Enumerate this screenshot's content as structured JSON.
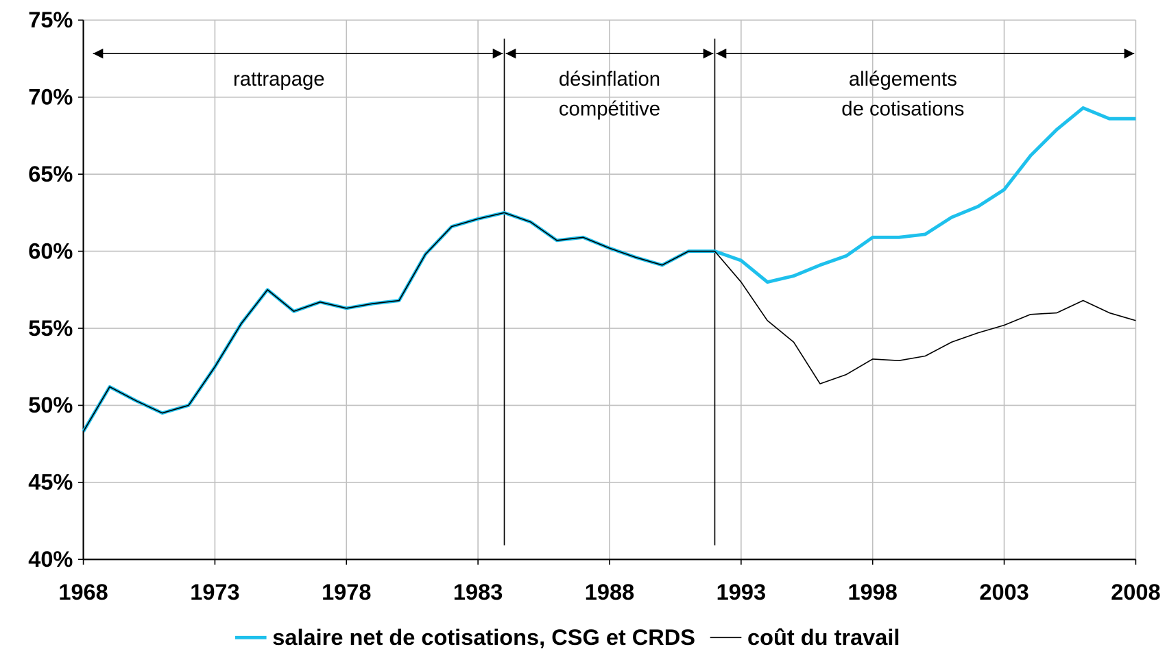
{
  "chart_data": {
    "type": "line",
    "x": [
      1968,
      1969,
      1970,
      1971,
      1972,
      1973,
      1974,
      1975,
      1976,
      1977,
      1978,
      1979,
      1980,
      1981,
      1982,
      1983,
      1984,
      1985,
      1986,
      1987,
      1988,
      1989,
      1990,
      1991,
      1992,
      1993,
      1994,
      1995,
      1996,
      1997,
      1998,
      1999,
      2000,
      2001,
      2002,
      2003,
      2004,
      2005,
      2006,
      2007,
      2008
    ],
    "series": [
      {
        "name": "salaire net de cotisations, CSG et CRDS",
        "color": "#1ec0ec",
        "values": [
          48.3,
          51.2,
          50.3,
          49.5,
          50.0,
          52.5,
          55.3,
          57.5,
          56.1,
          56.7,
          56.3,
          56.6,
          56.8,
          59.8,
          61.6,
          62.1,
          62.5,
          61.9,
          60.7,
          60.9,
          60.2,
          59.6,
          59.1,
          60.0,
          60.0,
          59.4,
          58.0,
          58.4,
          59.1,
          59.7,
          60.9,
          60.9,
          61.1,
          62.2,
          62.9,
          64.0,
          66.2,
          67.9,
          69.3,
          68.6,
          68.6
        ]
      },
      {
        "name": "coût du travail",
        "color": "#000000",
        "values": [
          48.3,
          51.2,
          50.3,
          49.5,
          50.0,
          52.5,
          55.3,
          57.5,
          56.1,
          56.7,
          56.3,
          56.6,
          56.8,
          59.8,
          61.6,
          62.1,
          62.5,
          61.9,
          60.7,
          60.9,
          60.2,
          59.6,
          59.1,
          60.0,
          60.0,
          58.0,
          55.5,
          54.1,
          51.4,
          52.0,
          53.0,
          52.9,
          53.2,
          54.1,
          54.7,
          55.2,
          55.9,
          56.0,
          56.8,
          56.0,
          55.5
        ]
      }
    ],
    "xlim": [
      1968,
      2008
    ],
    "xticks": [
      1968,
      1973,
      1978,
      1983,
      1988,
      1993,
      1998,
      2003,
      2008
    ],
    "ylim": [
      40,
      75
    ],
    "yticks": [
      {
        "value": 40,
        "label": "40%"
      },
      {
        "value": 45,
        "label": "45%"
      },
      {
        "value": 50,
        "label": "50%"
      },
      {
        "value": 55,
        "label": "55%"
      },
      {
        "value": 60,
        "label": "60%"
      },
      {
        "value": 65,
        "label": "65%"
      },
      {
        "value": 70,
        "label": "70%"
      },
      {
        "value": 75,
        "label": "75%"
      }
    ],
    "grid": true,
    "legend": "bottom",
    "periods": [
      {
        "lines": [
          "rattrapage"
        ],
        "start": 1968,
        "end": 1984
      },
      {
        "lines": [
          "désinflation",
          "compétitive"
        ],
        "start": 1984,
        "end": 1992
      },
      {
        "lines": [
          "allégements",
          "de cotisations"
        ],
        "start": 1992,
        "end": 2008
      }
    ]
  }
}
